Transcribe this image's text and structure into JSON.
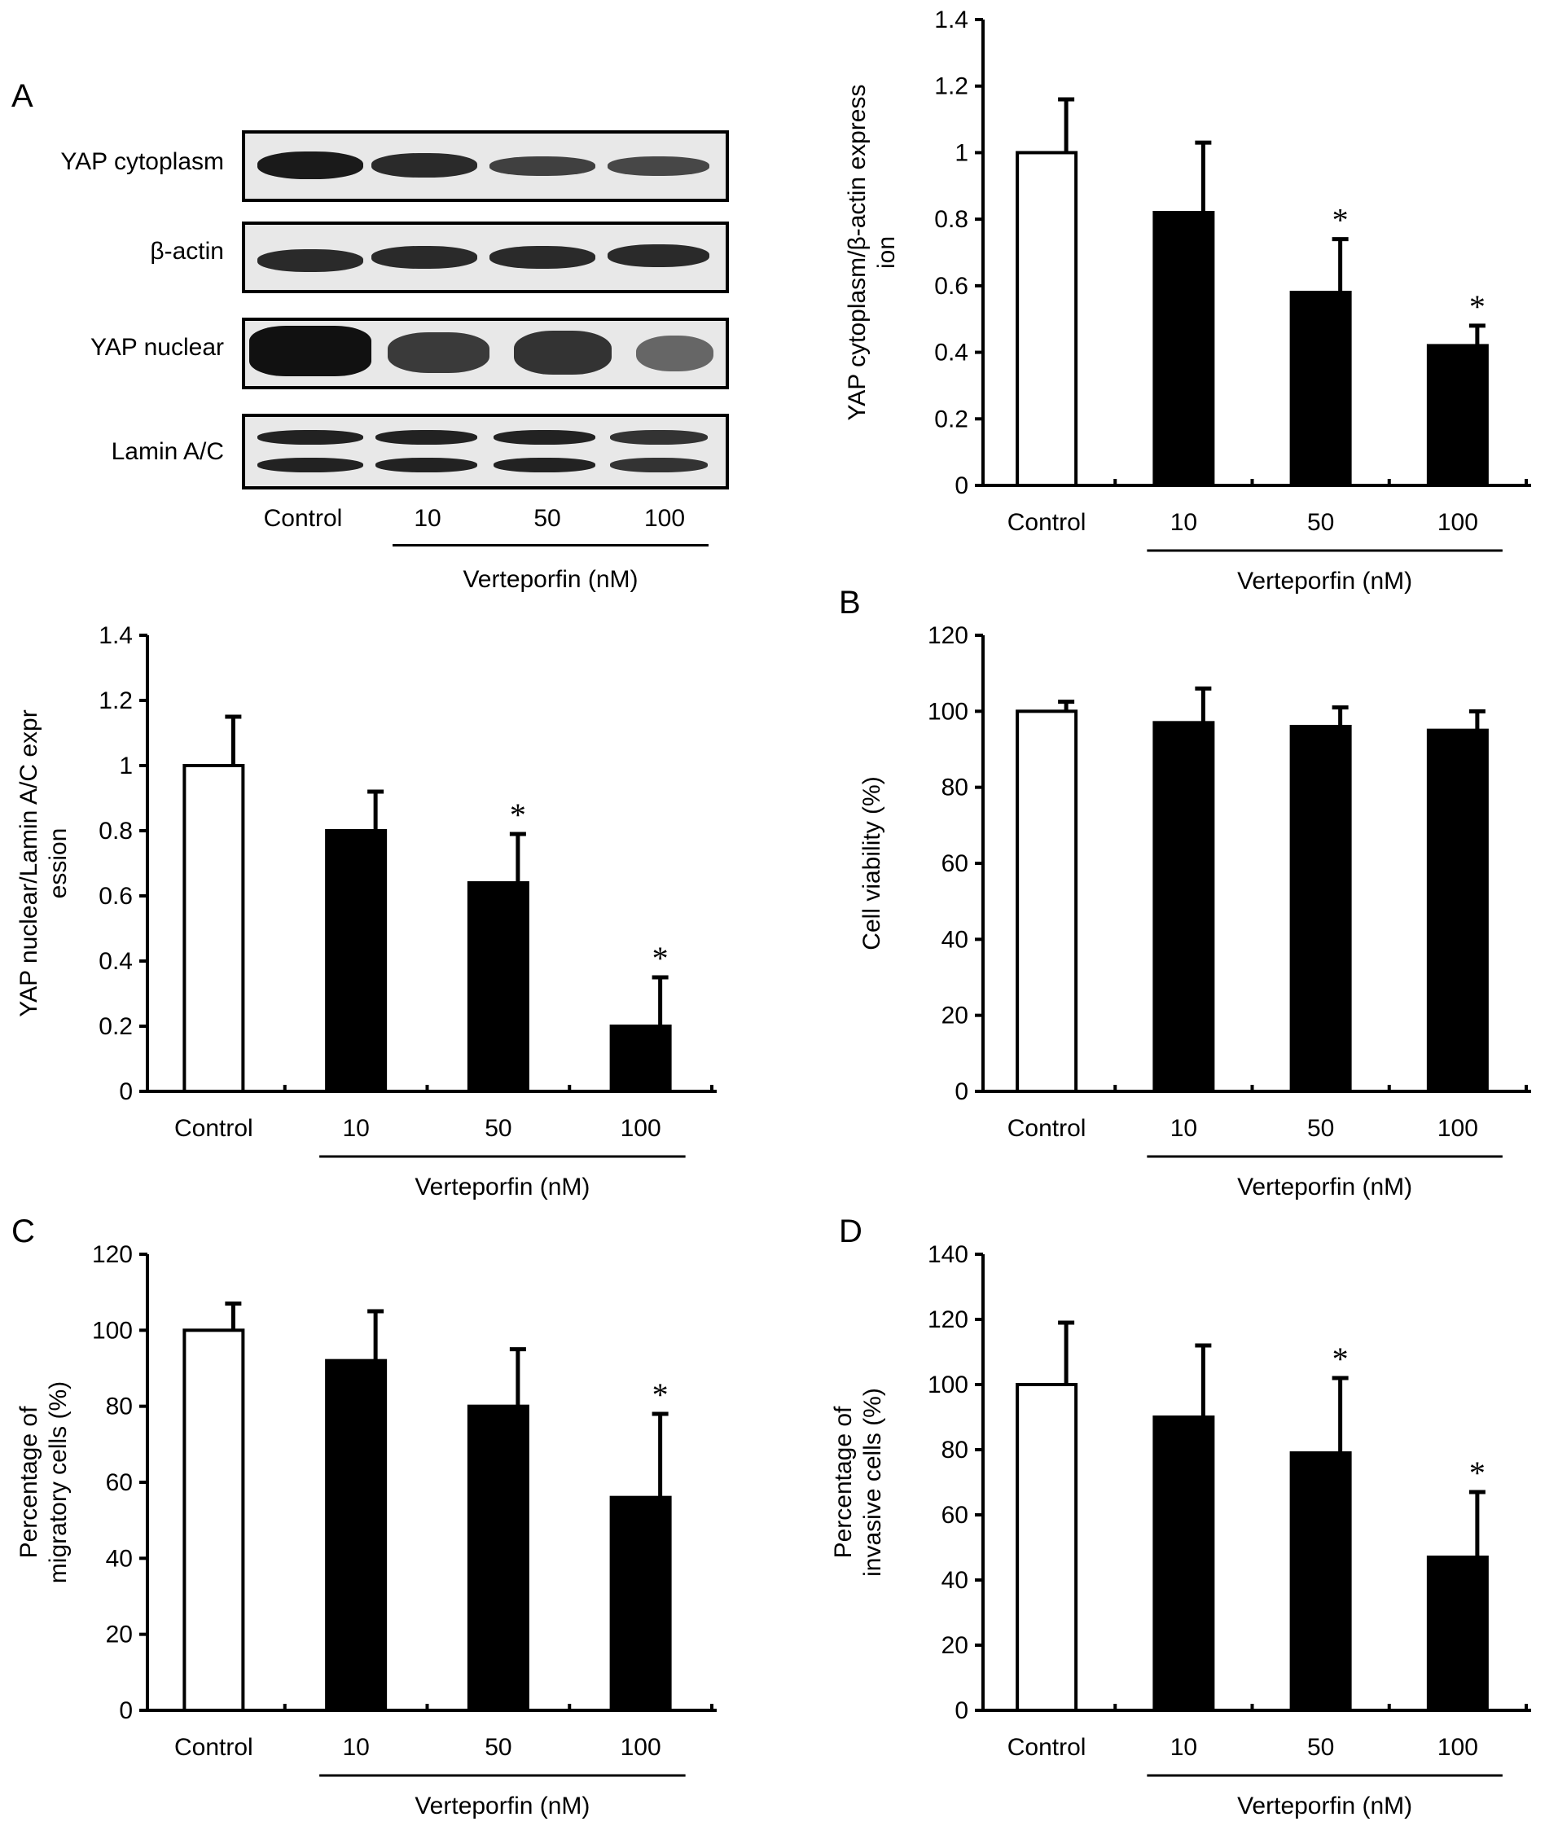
{
  "panels": {
    "a": "A",
    "b": "B",
    "c": "C",
    "d": "D"
  },
  "blot": {
    "rows": [
      "YAP cytoplasm",
      "β-actin",
      "YAP nuclear",
      "Lamin A/C"
    ],
    "lanes": [
      "Control",
      "10",
      "50",
      "100"
    ],
    "group_label": "Verteporfin (nM)"
  },
  "chart_data": [
    {
      "id": "yap-cyto",
      "type": "bar",
      "categories": [
        "Control",
        "10",
        "50",
        "100"
      ],
      "values": [
        1.0,
        0.82,
        0.58,
        0.42
      ],
      "errors": [
        0.16,
        0.21,
        0.16,
        0.06
      ],
      "significant": [
        false,
        false,
        true,
        true
      ],
      "ylabel": "YAP cytoplasm/β-actin expression",
      "ylim": [
        0,
        1.4
      ],
      "yticks": [
        "0",
        "0.2",
        "0.4",
        "0.6",
        "0.8",
        "1",
        "1.2",
        "1.4"
      ],
      "group_label": "Verteporfin (nM)",
      "fills": [
        "#ffffff",
        "#000000",
        "#000000",
        "#000000"
      ]
    },
    {
      "id": "yap-nuc",
      "type": "bar",
      "categories": [
        "Control",
        "10",
        "50",
        "100"
      ],
      "values": [
        1.0,
        0.8,
        0.64,
        0.2
      ],
      "errors": [
        0.15,
        0.12,
        0.15,
        0.15
      ],
      "significant": [
        false,
        false,
        true,
        true
      ],
      "ylabel": "YAP nuclear/Lamin A/C expression",
      "ylim": [
        0,
        1.4
      ],
      "yticks": [
        "0",
        "0.2",
        "0.4",
        "0.6",
        "0.8",
        "1",
        "1.2",
        "1.4"
      ],
      "group_label": "Verteporfin (nM)",
      "fills": [
        "#ffffff",
        "#000000",
        "#000000",
        "#000000"
      ]
    },
    {
      "id": "viability",
      "type": "bar",
      "categories": [
        "Control",
        "10",
        "50",
        "100"
      ],
      "values": [
        100,
        97,
        96,
        95
      ],
      "errors": [
        2.5,
        9,
        5,
        5
      ],
      "significant": [
        false,
        false,
        false,
        false
      ],
      "ylabel": "Cell viability (%)",
      "ylim": [
        0,
        120
      ],
      "yticks": [
        "0",
        "20",
        "40",
        "60",
        "80",
        "100",
        "120"
      ],
      "group_label": "Verteporfin (nM)",
      "fills": [
        "#ffffff",
        "#000000",
        "#000000",
        "#000000"
      ]
    },
    {
      "id": "migration",
      "type": "bar",
      "categories": [
        "Control",
        "10",
        "50",
        "100"
      ],
      "values": [
        100,
        92,
        80,
        56
      ],
      "errors": [
        7,
        13,
        15,
        22
      ],
      "significant": [
        false,
        false,
        false,
        true
      ],
      "ylabel": "Percentage of migratory cells (%)",
      "ylim": [
        0,
        120
      ],
      "yticks": [
        "0",
        "20",
        "40",
        "60",
        "80",
        "100",
        "120"
      ],
      "group_label": "Verteporfin (nM)",
      "fills": [
        "#ffffff",
        "#000000",
        "#000000",
        "#000000"
      ]
    },
    {
      "id": "invasion",
      "type": "bar",
      "categories": [
        "Control",
        "10",
        "50",
        "100"
      ],
      "values": [
        100,
        90,
        79,
        47
      ],
      "errors": [
        19,
        22,
        23,
        20
      ],
      "significant": [
        false,
        false,
        true,
        true
      ],
      "ylabel": "Percentage of invasive cells (%)",
      "ylim": [
        0,
        140
      ],
      "yticks": [
        "0",
        "20",
        "40",
        "60",
        "80",
        "100",
        "120",
        "140"
      ],
      "group_label": "Verteporfin (nM)",
      "fills": [
        "#ffffff",
        "#000000",
        "#000000",
        "#000000"
      ]
    }
  ]
}
